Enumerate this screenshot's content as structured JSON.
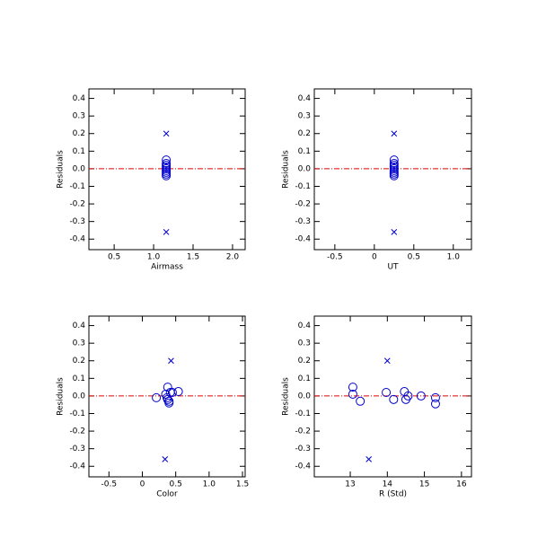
{
  "chart_data": [
    {
      "type": "scatter",
      "xlabel": "Airmass",
      "ylabel": "Residuals",
      "xlim": [
        0.18,
        2.16
      ],
      "ylim": [
        -0.46,
        0.454
      ],
      "xticks": [
        0.5,
        {
          "value": 1,
          "label": "1.0"
        },
        1.5,
        {
          "value": 2,
          "label": "2.0"
        }
      ],
      "yticks": [
        -0.4,
        -0.3,
        -0.2,
        -0.1,
        {
          "value": 0,
          "label": "0.0"
        },
        0.1,
        0.2,
        0.3,
        0.4
      ],
      "hline": 0,
      "hline_color": "#e00000",
      "series": [
        {
          "marker": "circle",
          "color": "#0000cc",
          "x": [
            1.16,
            1.16,
            1.16,
            1.16,
            1.16,
            1.16,
            1.16,
            1.16,
            1.16
          ],
          "values": [
            0.05,
            0.03,
            0.02,
            0.01,
            0.0,
            -0.01,
            -0.02,
            -0.03,
            -0.04
          ]
        },
        {
          "marker": "x",
          "color": "#0000cc",
          "x": [
            1.16,
            1.16
          ],
          "values": [
            0.2,
            -0.36
          ]
        }
      ]
    },
    {
      "type": "scatter",
      "xlabel": "UT",
      "ylabel": "Residuals",
      "xlim": [
        -0.76,
        1.23
      ],
      "ylim": [
        -0.46,
        0.454
      ],
      "xticks": [
        -0.5,
        0,
        0.5,
        {
          "value": 1,
          "label": "1.0"
        }
      ],
      "yticks": [
        -0.4,
        -0.3,
        -0.2,
        -0.1,
        {
          "value": 0,
          "label": "0.0"
        },
        0.1,
        0.2,
        0.3,
        0.4
      ],
      "hline": 0,
      "hline_color": "#e00000",
      "series": [
        {
          "marker": "circle",
          "color": "#0000cc",
          "x": [
            0.25,
            0.25,
            0.25,
            0.25,
            0.25,
            0.25,
            0.25,
            0.25,
            0.25
          ],
          "values": [
            0.05,
            0.03,
            0.02,
            0.01,
            0.0,
            -0.01,
            -0.02,
            -0.03,
            -0.04
          ]
        },
        {
          "marker": "x",
          "color": "#0000cc",
          "x": [
            0.25,
            0.25
          ],
          "values": [
            0.2,
            -0.36
          ]
        }
      ]
    },
    {
      "type": "scatter",
      "xlabel": "Color",
      "ylabel": "Residuals",
      "xlim": [
        -0.8,
        1.54
      ],
      "ylim": [
        -0.46,
        0.454
      ],
      "xticks": [
        -0.5,
        0,
        0.5,
        {
          "value": 1,
          "label": "1.0"
        },
        1.5
      ],
      "yticks": [
        -0.4,
        -0.3,
        -0.2,
        -0.1,
        {
          "value": 0,
          "label": "0.0"
        },
        0.1,
        0.2,
        0.3,
        0.4
      ],
      "hline": 0,
      "hline_color": "#e00000",
      "series": [
        {
          "marker": "circle",
          "color": "#0000cc",
          "x": [
            0.21,
            0.38,
            0.35,
            0.42,
            0.45,
            0.37,
            0.38,
            0.4,
            0.4,
            0.54
          ],
          "values": [
            -0.01,
            0.05,
            0.01,
            0.02,
            0.02,
            -0.01,
            -0.02,
            -0.03,
            -0.04,
            0.025
          ]
        },
        {
          "marker": "x",
          "color": "#0000cc",
          "x": [
            0.43,
            0.34
          ],
          "values": [
            0.2,
            -0.36
          ]
        }
      ]
    },
    {
      "type": "scatter",
      "xlabel": "R (Std)",
      "ylabel": "Residuals",
      "xlim": [
        12.03,
        16.27
      ],
      "ylim": [
        -0.46,
        0.454
      ],
      "xticks": [
        13,
        14,
        15,
        16
      ],
      "yticks": [
        -0.4,
        -0.3,
        -0.2,
        -0.1,
        {
          "value": 0,
          "label": "0.0"
        },
        0.1,
        0.2,
        0.3,
        0.4
      ],
      "hline": 0,
      "hline_color": "#e00000",
      "series": [
        {
          "marker": "circle",
          "color": "#0000cc",
          "x": [
            13.07,
            13.07,
            13.27,
            13.97,
            14.17,
            14.46,
            14.5,
            14.56,
            14.91,
            15.3,
            15.3
          ],
          "values": [
            0.05,
            0.01,
            -0.03,
            0.02,
            -0.02,
            0.025,
            -0.02,
            0.0,
            0.0,
            -0.01,
            -0.045
          ]
        },
        {
          "marker": "x",
          "color": "#0000cc",
          "x": [
            14.0,
            13.5
          ],
          "values": [
            0.2,
            -0.36
          ]
        }
      ]
    }
  ]
}
